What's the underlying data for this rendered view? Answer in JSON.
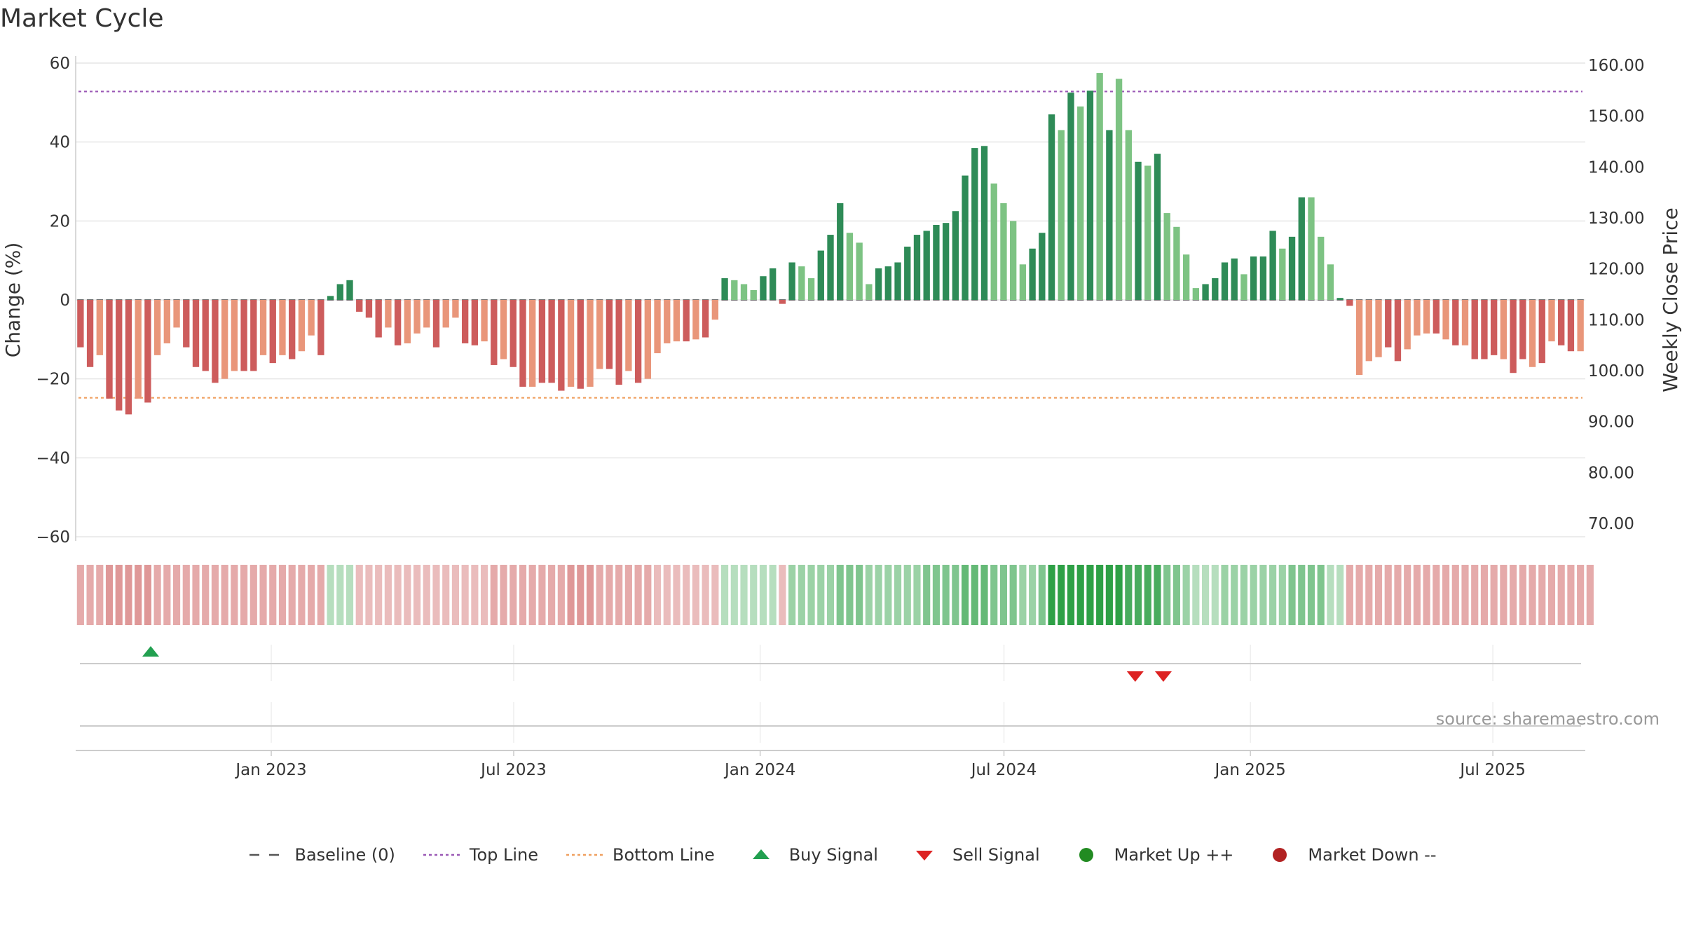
{
  "title": "Market Cycle",
  "source_text": "source: sharemaestro.com",
  "colors": {
    "dark_green": "#2e8b57",
    "light_green": "#7dc383",
    "dark_red": "#cd5c5c",
    "light_red": "#e9967a",
    "top_line": "#9b59b6",
    "bottom_line": "#f0a060",
    "buy": "#22a050",
    "sell": "#dd2222",
    "market_up": "#228b22",
    "market_down": "#b22222"
  },
  "legend": [
    {
      "label": "Baseline (0)",
      "symbol": "dash-gray"
    },
    {
      "label": "Top Line",
      "symbol": "dot-purple"
    },
    {
      "label": "Bottom Line",
      "symbol": "dot-orange"
    },
    {
      "label": "Buy Signal",
      "symbol": "triangle-up"
    },
    {
      "label": "Sell Signal",
      "symbol": "triangle-down"
    },
    {
      "label": "Market Up ++",
      "symbol": "circle-green"
    },
    {
      "label": "Market Down --",
      "symbol": "circle-red"
    }
  ],
  "chart_data": {
    "type": "bar",
    "ylabel": "Change (%)",
    "y2label": "Weekly Close Price",
    "ylim": [
      -60,
      60
    ],
    "y2lim": [
      70,
      160
    ],
    "yticks": [
      "−60",
      "−40",
      "−20",
      "0",
      "20",
      "40",
      "60"
    ],
    "y2ticks": [
      "70.00",
      "80.00",
      "90.00",
      "100.00",
      "110.00",
      "120.00",
      "130.00",
      "140.00",
      "150.00",
      "160.00"
    ],
    "xticks": [
      "Jan 2023",
      "Jul 2023",
      "Jan 2024",
      "Jul 2024",
      "Jan 2025",
      "Jul 2025"
    ],
    "x_start": "2022-08-08",
    "x_end": "2025-09-08",
    "xtick_dates": [
      "2023-01-01",
      "2023-07-01",
      "2024-01-01",
      "2024-07-01",
      "2025-01-01",
      "2025-07-01"
    ],
    "top_line": 52.8,
    "bottom_line": -24.8,
    "grid": true,
    "legend_position": "bottom",
    "values": [
      -12,
      -17,
      -14,
      -25,
      -28,
      -29,
      -25,
      -26,
      -14,
      -11,
      -7,
      -12,
      -17,
      -18,
      -21,
      -20,
      -18,
      -18,
      -18,
      -14,
      -16,
      -14,
      -15,
      -13,
      -9,
      -14,
      1,
      4,
      5,
      -3,
      -4.5,
      -9.5,
      -7,
      -11.5,
      -11,
      -8.5,
      -7,
      -12,
      -7,
      -4.5,
      -11,
      -11.5,
      -10.5,
      -16.5,
      -15,
      -17,
      -22,
      -22,
      -21,
      -21,
      -23,
      -22,
      -22.5,
      -22,
      -17.5,
      -17.5,
      -21.5,
      -18,
      -21,
      -20,
      -13.5,
      -11,
      -10.5,
      -10.5,
      -10,
      -9.5,
      -5,
      5.5,
      5,
      4,
      2.5,
      6,
      8,
      -1,
      9.5,
      8.5,
      5.5,
      12.5,
      16.5,
      24.5,
      17,
      14.5,
      4,
      8,
      8.5,
      9.5,
      13.5,
      16.5,
      17.5,
      19,
      19.5,
      22.5,
      31.5,
      38.5,
      39,
      29.5,
      24.5,
      20,
      9,
      13,
      17,
      47,
      43,
      52.5,
      49,
      53,
      57.5,
      43,
      56,
      43,
      35,
      34,
      37,
      22,
      18.5,
      11.5,
      3,
      4,
      5.5,
      9.5,
      10.5,
      6.5,
      11,
      11,
      17.5,
      13,
      16,
      26,
      26,
      16,
      9,
      0.5,
      -1.5,
      -19,
      -15.5,
      -14.5,
      -12,
      -15.5,
      -12.5,
      -9,
      -8.5,
      -8.5,
      -10,
      -11.5,
      -11.5,
      -15,
      -15,
      -14,
      -15,
      -18.5,
      -15,
      -17,
      -16,
      -10.5,
      -11.5,
      -13,
      -13
    ],
    "shades": [
      1,
      1,
      0,
      1,
      1,
      1,
      0,
      1,
      0,
      0,
      0,
      1,
      1,
      1,
      1,
      0,
      0,
      1,
      1,
      0,
      1,
      0,
      1,
      0,
      0,
      1,
      1,
      1,
      1,
      1,
      1,
      1,
      0,
      1,
      0,
      0,
      0,
      1,
      0,
      0,
      1,
      1,
      0,
      1,
      0,
      1,
      1,
      0,
      1,
      1,
      1,
      0,
      1,
      0,
      0,
      1,
      1,
      0,
      1,
      0,
      0,
      0,
      0,
      1,
      0,
      1,
      0,
      1,
      0,
      0,
      0,
      1,
      1,
      1,
      1,
      0,
      0,
      1,
      1,
      1,
      0,
      0,
      0,
      1,
      1,
      1,
      1,
      1,
      1,
      1,
      1,
      1,
      1,
      1,
      1,
      0,
      0,
      0,
      0,
      1,
      1,
      1,
      0,
      1,
      0,
      1,
      0,
      1,
      0,
      0,
      1,
      0,
      1,
      0,
      0,
      0,
      0,
      1,
      1,
      1,
      1,
      0,
      1,
      1,
      1,
      0,
      1,
      1,
      0,
      0,
      0,
      1,
      1,
      0,
      0,
      0,
      1,
      1,
      0,
      0,
      0,
      1,
      0,
      1,
      0,
      1,
      1,
      1,
      0,
      1,
      1,
      0,
      1,
      0,
      1,
      1,
      0,
      0
    ],
    "heat_levels": [
      -3,
      -3,
      -3,
      -4,
      -4,
      -4,
      -4,
      -4,
      -3,
      -3,
      -3,
      -3,
      -3,
      -3,
      -3,
      -3,
      -3,
      -3,
      -3,
      -3,
      -3,
      -3,
      -3,
      -3,
      -3,
      -3,
      1,
      1,
      1,
      -2,
      -2,
      -2,
      -2,
      -2,
      -2,
      -2,
      -2,
      -2,
      -2,
      -2,
      -2,
      -2,
      -2,
      -3,
      -3,
      -3,
      -3,
      -3,
      -3,
      -3,
      -3,
      -4,
      -4,
      -4,
      -3,
      -3,
      -3,
      -3,
      -3,
      -3,
      -2,
      -2,
      -2,
      -2,
      -2,
      -2,
      -2,
      1,
      1,
      1,
      1,
      1,
      1,
      -2,
      2,
      2,
      2,
      2,
      2,
      3,
      3,
      3,
      2,
      2,
      2,
      2,
      2,
      2,
      3,
      3,
      3,
      3,
      4,
      4,
      4,
      3,
      3,
      3,
      2,
      2,
      3,
      6,
      6,
      6,
      6,
      6,
      6,
      6,
      6,
      5,
      5,
      5,
      5,
      3,
      3,
      2,
      1,
      1,
      1,
      2,
      2,
      2,
      2,
      2,
      2,
      2,
      3,
      3,
      3,
      3,
      1,
      1,
      -3,
      -3,
      -3,
      -3,
      -3,
      -3,
      -3,
      -3,
      -3,
      -3,
      -3,
      -3,
      -3,
      -3,
      -3,
      -3,
      -3,
      -3,
      -3,
      -3,
      -3,
      -3,
      -3,
      -3,
      -3,
      -3
    ],
    "buy_signal_dates": [
      "2022-10-03"
    ],
    "sell_signal_dates": [
      "2024-10-07",
      "2024-10-28"
    ]
  }
}
